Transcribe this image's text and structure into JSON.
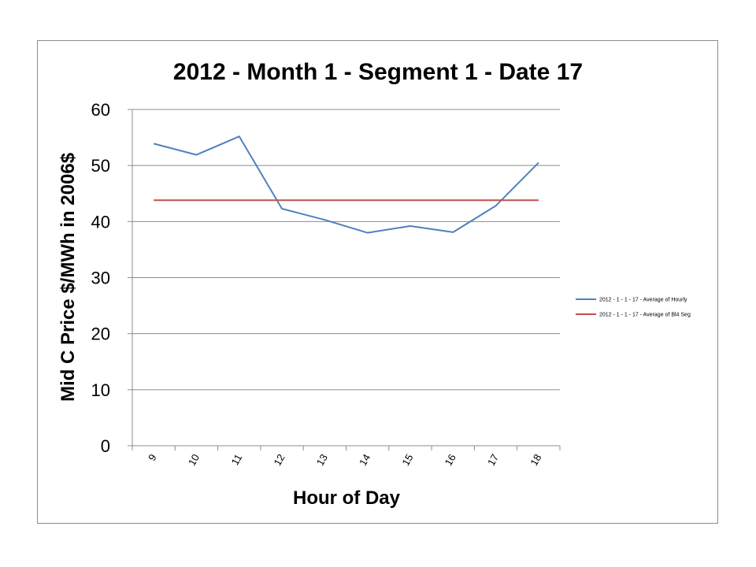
{
  "chart_data": {
    "type": "line",
    "title": "2012 - Month 1 - Segment 1 - Date 17",
    "xlabel": "Hour of Day",
    "ylabel": "Mid C Price $/MWh in 2006$",
    "categories": [
      "9",
      "10",
      "11",
      "12",
      "13",
      "14",
      "15",
      "16",
      "17",
      "18"
    ],
    "ylim": [
      0,
      60
    ],
    "yticks": [
      0,
      10,
      20,
      30,
      40,
      50,
      60
    ],
    "grid": true,
    "legend_position": "right",
    "series": [
      {
        "name": "2012 - 1 - 1 - 17 - Average of Hourly",
        "color": "#4f81bd",
        "values": [
          53.9,
          51.9,
          55.2,
          42.3,
          40.3,
          38.0,
          39.2,
          38.1,
          42.8,
          50.5
        ]
      },
      {
        "name": "2012 - 1 - 1 - 17 - Average of Bl4 Seg",
        "color": "#c0504d",
        "values": [
          43.8,
          43.8,
          43.8,
          43.8,
          43.8,
          43.8,
          43.8,
          43.8,
          43.8,
          43.8
        ]
      }
    ]
  }
}
